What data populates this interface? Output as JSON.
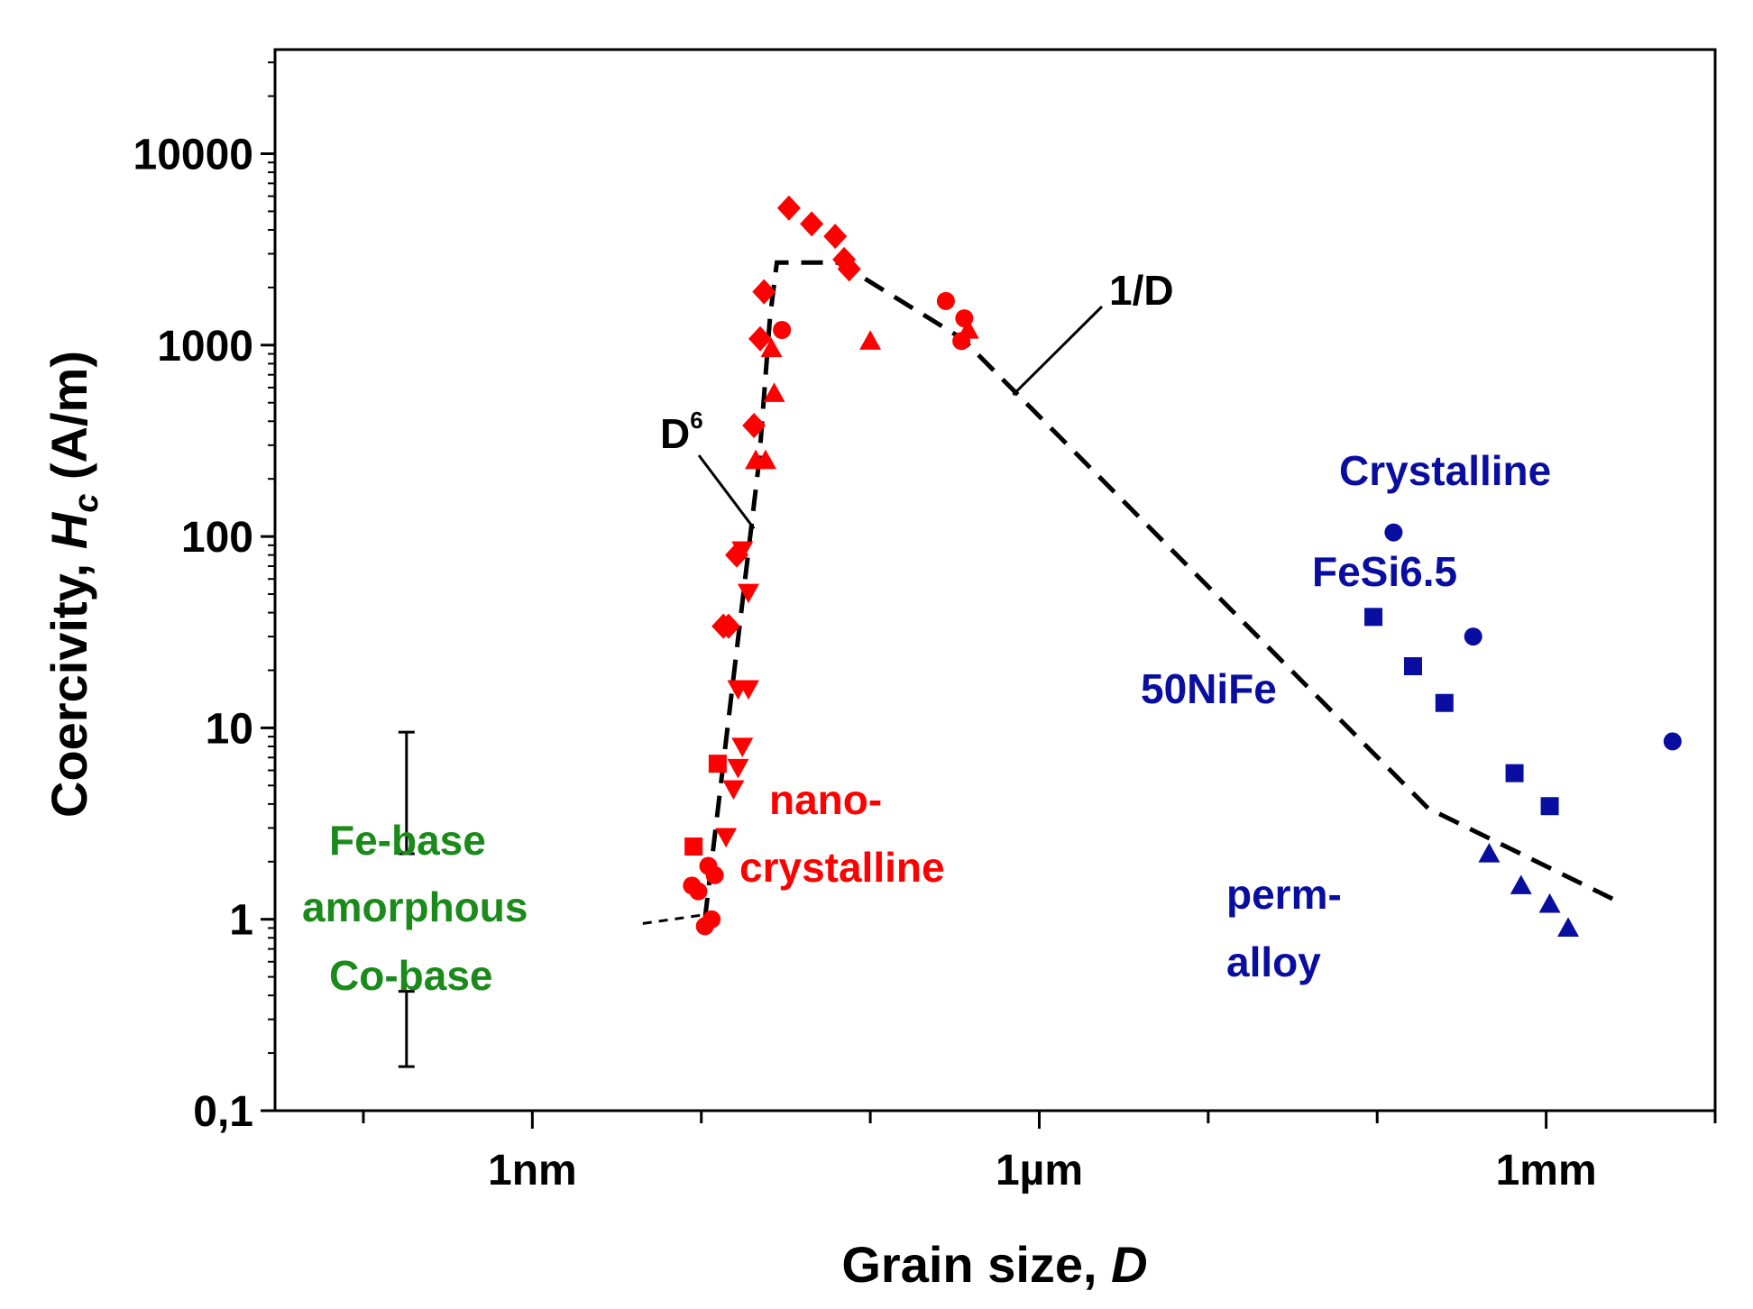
{
  "chart_data": {
    "type": "scatter",
    "x_scale": "log",
    "y_scale": "log",
    "xlim_m": [
      3e-11,
      0.01
    ],
    "ylim": [
      0.1,
      35000
    ],
    "xlabel": "Grain size, ",
    "xlabel_italic": "D",
    "ylabel": "Coercivity, ",
    "ylabel_italic": "H",
    "ylabel_sub": "c",
    "ylabel_unit": " (A/m)",
    "grid": false,
    "y_ticks": [
      {
        "value": 0.1,
        "label": "0,1"
      },
      {
        "value": 1,
        "label": "1"
      },
      {
        "value": 10,
        "label": "10"
      },
      {
        "value": 100,
        "label": "100"
      },
      {
        "value": 1000,
        "label": "1000"
      },
      {
        "value": 10000,
        "label": "10000"
      }
    ],
    "x_major_ticks": [
      {
        "value": 1e-09,
        "label": "1nm"
      },
      {
        "value": 1e-06,
        "label": "1µm"
      },
      {
        "value": 0.001,
        "label": "1mm"
      }
    ],
    "x_minor_ticks": [
      1e-10,
      1e-08,
      1e-07,
      1e-05,
      0.0001,
      0.01
    ],
    "colors": {
      "nano": "#ff0000",
      "crystalline": "#0a0ea0",
      "fe_base": "#1a8a1a",
      "line": "#000000"
    },
    "series": [
      {
        "group": "nano",
        "marker": "square",
        "points": [
          [
            9e-09,
            2.4
          ],
          [
            1.25e-08,
            6.5
          ]
        ]
      },
      {
        "group": "nano",
        "marker": "circle",
        "points": [
          [
            8.8e-09,
            1.5
          ],
          [
            9.6e-09,
            1.4
          ],
          [
            1.05e-08,
            0.92
          ],
          [
            1.15e-08,
            1.0
          ],
          [
            1.1e-08,
            1.9
          ],
          [
            1.2e-08,
            1.7
          ],
          [
            3e-08,
            1200
          ],
          [
            3.46e-07,
            1050
          ],
          [
            2.8e-07,
            1700
          ],
          [
            3.6e-07,
            1380
          ]
        ]
      },
      {
        "group": "nano",
        "marker": "diamond",
        "points": [
          [
            1.35e-08,
            34
          ],
          [
            1.45e-08,
            34
          ],
          [
            1.62e-08,
            80
          ],
          [
            2.05e-08,
            380
          ],
          [
            2.23e-08,
            1080
          ],
          [
            2.35e-08,
            1900
          ],
          [
            3.3e-08,
            5200
          ],
          [
            4.5e-08,
            4300
          ],
          [
            6.2e-08,
            3700
          ],
          [
            7e-08,
            2800
          ],
          [
            7.5e-08,
            2500
          ]
        ]
      },
      {
        "group": "nano",
        "marker": "triangle-down",
        "points": [
          [
            1.4e-08,
            2.7
          ],
          [
            1.55e-08,
            4.8
          ],
          [
            1.65e-08,
            6.2
          ],
          [
            1.75e-08,
            8.0
          ],
          [
            1.65e-08,
            16
          ],
          [
            1.9e-08,
            16
          ],
          [
            1.9e-08,
            51
          ],
          [
            1.75e-08,
            85
          ]
        ]
      },
      {
        "group": "nano",
        "marker": "triangle-up",
        "points": [
          [
            2.1e-08,
            250
          ],
          [
            2.4e-08,
            250
          ],
          [
            2.6e-08,
            960
          ],
          [
            2.7e-08,
            560
          ],
          [
            1e-07,
            1050
          ],
          [
            3.8e-07,
            1200
          ]
        ]
      },
      {
        "group": "crystalline",
        "marker": "circle",
        "points": [
          [
            0.000125,
            105
          ],
          [
            0.00037,
            30
          ],
          [
            0.0056,
            8.5
          ]
        ]
      },
      {
        "group": "crystalline",
        "marker": "square",
        "points": [
          [
            9.5e-05,
            38
          ],
          [
            0.000163,
            21
          ],
          [
            0.00025,
            13.5
          ],
          [
            0.00065,
            5.8
          ],
          [
            0.00105,
            3.9
          ]
        ]
      },
      {
        "group": "crystalline",
        "marker": "triangle-up",
        "points": [
          [
            0.00046,
            2.2
          ],
          [
            0.00071,
            1.5
          ],
          [
            0.00105,
            1.2
          ],
          [
            0.00135,
            0.9
          ]
        ]
      }
    ],
    "trend_lines": [
      {
        "name": "D6_1D",
        "points": [
          [
            1.05e-08,
            1.0
          ],
          [
            2.2e-08,
            250
          ],
          [
            2.55e-08,
            1400
          ],
          [
            2.8e-08,
            2700
          ],
          [
            6.5e-08,
            2700
          ],
          [
            3.5e-07,
            1080
          ],
          [
            0.0002,
            3.8
          ],
          [
            0.0026,
            1.25
          ]
        ]
      },
      {
        "name": "amorphous-connector",
        "points": [
          [
            4.5e-09,
            0.95
          ],
          [
            1e-08,
            1.05
          ]
        ]
      }
    ],
    "ranges": [
      {
        "x": 1.8e-10,
        "y": [
          2.2,
          9.5
        ]
      },
      {
        "x": 1.8e-10,
        "y": [
          0.17,
          0.42
        ]
      }
    ],
    "annotations": {
      "d6": {
        "base": "D",
        "sup": "6"
      },
      "one_over_d": "1/D",
      "crystalline": "Crystalline",
      "fesi": "FeSi6.5",
      "nife": "50NiFe",
      "perm": [
        "perm-",
        "alloy"
      ],
      "nano": [
        "nano-",
        "crystalline"
      ],
      "fe_base": "Fe-base",
      "amorphous": "amorphous",
      "co_base": "Co-base"
    }
  }
}
